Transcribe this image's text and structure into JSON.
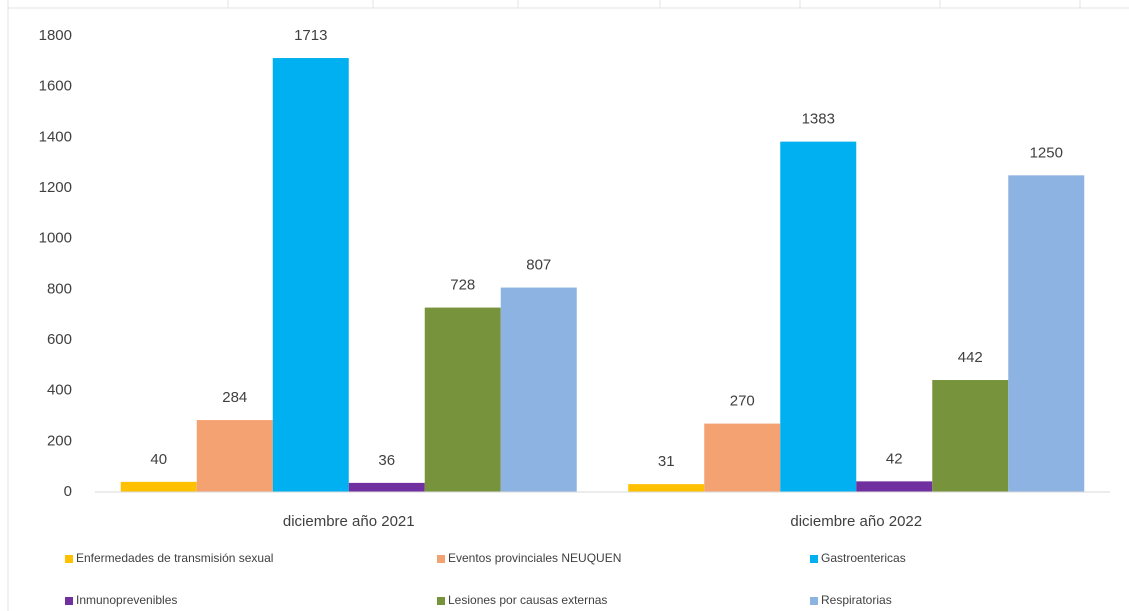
{
  "chart_data": {
    "type": "bar",
    "categories": [
      "diciembre año 2021",
      "diciembre año 2022"
    ],
    "series": [
      {
        "name": "Enfermedades de transmisión sexual",
        "color": "#ffc000",
        "values": [
          40,
          31
        ]
      },
      {
        "name": "Eventos provinciales NEUQUEN",
        "color": "#f4a272",
        "values": [
          284,
          270
        ]
      },
      {
        "name": "Gastroentericas",
        "color": "#00b0f0",
        "values": [
          1713,
          1383
        ]
      },
      {
        "name": "Inmunoprevenibles",
        "color": "#7030a0",
        "values": [
          36,
          42
        ]
      },
      {
        "name": "Lesiones por causas externas",
        "color": "#77933c",
        "values": [
          728,
          442
        ]
      },
      {
        "name": "Respiratorias",
        "color": "#8db3e2",
        "values": [
          807,
          1250
        ]
      }
    ],
    "ylim": [
      0,
      1800
    ],
    "yticks": [
      0,
      200,
      400,
      600,
      800,
      1000,
      1200,
      1400,
      1600,
      1800
    ],
    "grid": false,
    "legend": "bottom"
  }
}
